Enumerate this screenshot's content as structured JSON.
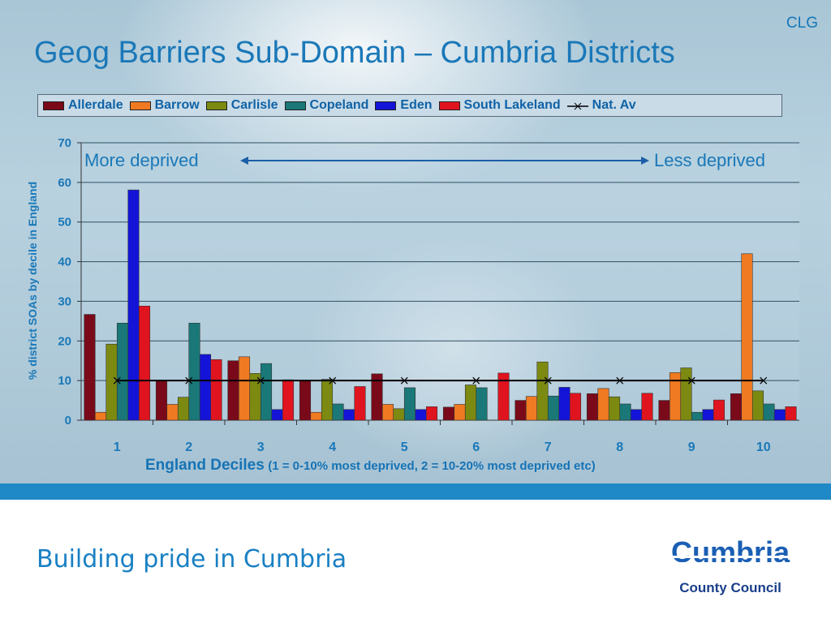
{
  "slide": {
    "corner_label": "CLG",
    "title": "Geog Barriers Sub-Domain – Cumbria Districts",
    "tagline": "Building pride in Cumbria",
    "logo": {
      "name": "Cumbria",
      "subtitle": "County Council"
    }
  },
  "annotations": {
    "left": "More deprived",
    "right": "Less deprived"
  },
  "chart_data": {
    "type": "bar",
    "xlabel": "England Deciles",
    "xlabel_note": "(1 = 0-10% most deprived, 2 = 10-20% most deprived etc)",
    "ylabel": "% district SOAs by decile in England",
    "ylim": [
      0,
      70
    ],
    "yticks": [
      "0",
      "10",
      "20",
      "30",
      "40",
      "50",
      "60",
      "70"
    ],
    "categories": [
      "1",
      "2",
      "3",
      "4",
      "5",
      "6",
      "7",
      "8",
      "9",
      "10"
    ],
    "grid": true,
    "legend_position": "top",
    "series": [
      {
        "name": "Allerdale",
        "color": "#7a0a1a",
        "values": [
          26.7,
          10,
          15,
          10,
          11.7,
          3.3,
          5,
          6.7,
          5,
          6.7
        ]
      },
      {
        "name": "Barrow",
        "color": "#f07a22",
        "values": [
          2,
          4,
          16,
          2,
          4,
          4,
          6,
          8,
          12,
          42
        ]
      },
      {
        "name": "Carlisle",
        "color": "#7d8a12",
        "values": [
          19.2,
          5.8,
          11.8,
          10.3,
          2.9,
          8.9,
          14.7,
          5.9,
          13.2,
          7.4
        ]
      },
      {
        "name": "Copeland",
        "color": "#1a7878",
        "values": [
          24.5,
          24.5,
          14.3,
          4.1,
          8.2,
          8.2,
          6.1,
          4.1,
          2,
          4.1
        ]
      },
      {
        "name": "Eden",
        "color": "#1414d8",
        "values": [
          58.1,
          16.6,
          2.7,
          2.7,
          2.7,
          0,
          8.3,
          2.7,
          2.7,
          2.7
        ]
      },
      {
        "name": "South Lakeland",
        "color": "#e0141e",
        "values": [
          28.8,
          15.3,
          10.2,
          8.5,
          3.4,
          11.9,
          6.8,
          6.8,
          5.1,
          3.4
        ]
      }
    ],
    "line_series": {
      "name": "Nat. Av",
      "color": "#000000",
      "values": [
        10,
        10,
        10,
        10,
        10,
        10,
        10,
        10,
        10,
        10
      ]
    }
  }
}
